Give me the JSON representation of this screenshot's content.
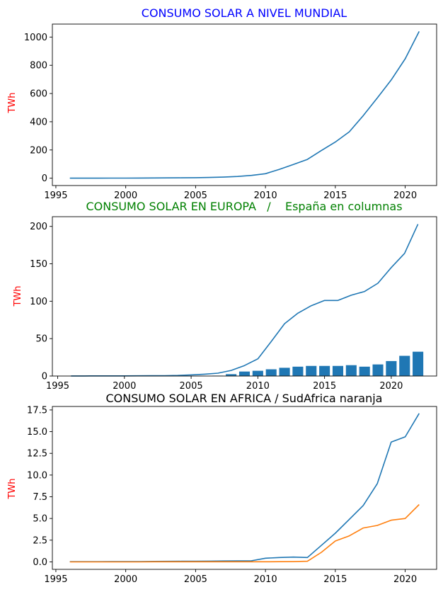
{
  "chart_data": [
    {
      "type": "line",
      "title": "CONSUMO SOLAR A NIVEL MUNDIAL",
      "title_color": "#0000ff",
      "xlabel": "",
      "ylabel": "TWh",
      "ylabel_color": "#ff0000",
      "xlim": [
        1994.75,
        2022.25
      ],
      "ylim": [
        -52,
        1092
      ],
      "xticks": [
        1995,
        2000,
        2005,
        2010,
        2015,
        2020
      ],
      "yticks": [
        0,
        200,
        400,
        600,
        800,
        1000
      ],
      "grid": false,
      "series": [
        {
          "color": "#1f77b4",
          "x": [
            1996,
            1997,
            1998,
            1999,
            2000,
            2001,
            2002,
            2003,
            2004,
            2005,
            2006,
            2007,
            2008,
            2009,
            2010,
            2011,
            2012,
            2013,
            2014,
            2015,
            2016,
            2017,
            2018,
            2019,
            2020,
            2021
          ],
          "values": [
            0.2,
            0.3,
            0.4,
            0.5,
            0.8,
            1.1,
            1.5,
            2.0,
            2.6,
            3.7,
            5.2,
            7.5,
            12,
            20,
            32,
            63,
            97,
            133,
            196,
            256,
            329,
            443,
            568,
            696,
            846,
            1040
          ]
        }
      ]
    },
    {
      "type": "bar+line",
      "title": "CONSUMO SOLAR EN EUROPA   /    España en columnas",
      "title_color": "#008000",
      "xlabel": "",
      "ylabel": "TWh",
      "ylabel_color": "#ff0000",
      "xlim": [
        1994.6,
        2023.4
      ],
      "ylim": [
        0,
        213
      ],
      "xticks": [
        1995,
        2000,
        2005,
        2010,
        2015,
        2020
      ],
      "yticks": [
        0,
        50,
        100,
        150,
        200
      ],
      "grid": false,
      "series": [
        {
          "type": "line",
          "color": "#1f77b4",
          "x": [
            1996,
            1997,
            1998,
            1999,
            2000,
            2001,
            2002,
            2003,
            2004,
            2005,
            2006,
            2007,
            2008,
            2009,
            2010,
            2011,
            2012,
            2013,
            2014,
            2015,
            2016,
            2017,
            2018,
            2019,
            2020,
            2021,
            2022
          ],
          "values": [
            0.1,
            0.1,
            0.2,
            0.2,
            0.2,
            0.3,
            0.4,
            0.5,
            0.8,
            1.5,
            2.5,
            3.8,
            7.5,
            14,
            23,
            46,
            70,
            84,
            94,
            101,
            101,
            108,
            113,
            124,
            145,
            164,
            203
          ]
        },
        {
          "type": "bar",
          "color": "#1f77b4",
          "x": [
            1996,
            1997,
            1998,
            1999,
            2000,
            2001,
            2002,
            2003,
            2004,
            2005,
            2006,
            2007,
            2008,
            2009,
            2010,
            2011,
            2012,
            2013,
            2014,
            2015,
            2016,
            2017,
            2018,
            2019,
            2020,
            2021,
            2022
          ],
          "values": [
            0,
            0,
            0,
            0,
            0,
            0,
            0,
            0,
            0.02,
            0.04,
            0.1,
            0.5,
            2.5,
            6,
            7,
            9,
            11,
            12.5,
            13.5,
            13.5,
            13.5,
            14.5,
            12.5,
            15.5,
            20,
            27,
            32.5
          ]
        }
      ]
    },
    {
      "type": "line",
      "title": "CONSUMO SOLAR EN AFRICA / SudAfrica naranja",
      "title_color": "#000000",
      "xlabel": "",
      "ylabel": "TWh",
      "ylabel_color": "#ff0000",
      "xlim": [
        1994.75,
        2022.25
      ],
      "ylim": [
        -0.86,
        17.9
      ],
      "xticks": [
        1995,
        2000,
        2005,
        2010,
        2015,
        2020
      ],
      "yticks": [
        0.0,
        2.5,
        5.0,
        7.5,
        10.0,
        12.5,
        15.0,
        17.5
      ],
      "ytick_labels": [
        "0.0",
        "2.5",
        "5.0",
        "7.5",
        "10.0",
        "12.5",
        "15.0",
        "17.5"
      ],
      "grid": false,
      "series": [
        {
          "color": "#1f77b4",
          "x": [
            1996,
            1997,
            1998,
            1999,
            2000,
            2001,
            2002,
            2003,
            2004,
            2005,
            2006,
            2007,
            2008,
            2009,
            2010,
            2011,
            2012,
            2013,
            2014,
            2015,
            2016,
            2017,
            2018,
            2019,
            2020,
            2021
          ],
          "values": [
            0.02,
            0.02,
            0.02,
            0.03,
            0.03,
            0.04,
            0.05,
            0.06,
            0.07,
            0.08,
            0.09,
            0.1,
            0.11,
            0.13,
            0.42,
            0.5,
            0.55,
            0.5,
            1.9,
            3.3,
            4.9,
            6.5,
            9.0,
            13.8,
            14.4,
            17.1
          ]
        },
        {
          "color": "#ff7f0e",
          "x": [
            1996,
            1997,
            1998,
            1999,
            2000,
            2001,
            2002,
            2003,
            2004,
            2005,
            2006,
            2007,
            2008,
            2009,
            2010,
            2011,
            2012,
            2013,
            2014,
            2015,
            2016,
            2017,
            2018,
            2019,
            2020,
            2021
          ],
          "values": [
            0,
            0,
            0,
            0,
            0,
            0,
            0.01,
            0.01,
            0.01,
            0.01,
            0.01,
            0.01,
            0.01,
            0.01,
            0.01,
            0.02,
            0.03,
            0.07,
            1.1,
            2.4,
            3.0,
            3.9,
            4.2,
            4.8,
            5.0,
            6.6
          ]
        }
      ]
    }
  ]
}
